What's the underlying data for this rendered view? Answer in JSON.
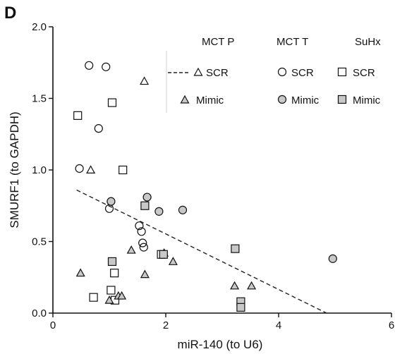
{
  "panel_label": "D",
  "chart_data": {
    "type": "scatter",
    "xlabel": "miR-140 (to U6)",
    "ylabel": "SMURF1 (to GAPDH)",
    "xlim": [
      0,
      6
    ],
    "ylim": [
      0,
      2.0
    ],
    "x_ticks": [
      {
        "value": 0,
        "label": "0"
      },
      {
        "value": 2,
        "label": "2"
      },
      {
        "value": 4,
        "label": "4"
      },
      {
        "value": 6,
        "label": "6"
      }
    ],
    "y_ticks": [
      {
        "value": 0,
        "label": "0.0"
      },
      {
        "value": 0.5,
        "label": "0.5"
      },
      {
        "value": 1.0,
        "label": "1.0"
      },
      {
        "value": 1.5,
        "label": "1.5"
      },
      {
        "value": 2.0,
        "label": "2.0"
      }
    ],
    "grid": false,
    "legend": {
      "position": "top-right",
      "column_headers": [
        "MCT P",
        "MCT T",
        "SuHx"
      ],
      "row_labels": [
        "SCR",
        "Mimic"
      ]
    },
    "trend_line": {
      "style": "dashed",
      "x": [
        0.42,
        4.85
      ],
      "y": [
        0.86,
        0.0
      ]
    },
    "series": [
      {
        "model": "MCT P",
        "group": "SCR",
        "marker": "triangle",
        "fill": "none",
        "points": [
          [
            0.67,
            1.0
          ],
          [
            1.62,
            1.62
          ]
        ]
      },
      {
        "model": "MCT T",
        "group": "SCR",
        "marker": "circle",
        "fill": "none",
        "points": [
          [
            0.64,
            1.73
          ],
          [
            0.94,
            1.72
          ],
          [
            0.81,
            1.29
          ],
          [
            0.47,
            1.01
          ],
          [
            1.0,
            0.73
          ],
          [
            1.53,
            0.61
          ],
          [
            1.57,
            0.57
          ],
          [
            1.59,
            0.49
          ],
          [
            1.61,
            0.46
          ]
        ]
      },
      {
        "model": "SuHx",
        "group": "SCR",
        "marker": "square",
        "fill": "none",
        "points": [
          [
            0.44,
            1.38
          ],
          [
            1.05,
            1.47
          ],
          [
            1.24,
            1.0
          ],
          [
            1.09,
            0.28
          ],
          [
            1.03,
            0.16
          ],
          [
            0.72,
            0.11
          ],
          [
            1.1,
            0.09
          ],
          [
            1.92,
            0.41
          ]
        ]
      },
      {
        "model": "MCT P",
        "group": "Mimic",
        "marker": "triangle",
        "fill": "#c8c8c8",
        "points": [
          [
            0.49,
            0.28
          ],
          [
            1.39,
            0.44
          ],
          [
            1.63,
            0.27
          ],
          [
            1.97,
            0.42
          ],
          [
            2.13,
            0.36
          ],
          [
            1.0,
            0.09
          ],
          [
            1.16,
            0.12
          ],
          [
            1.22,
            0.12
          ],
          [
            3.22,
            0.19
          ],
          [
            3.52,
            0.19
          ]
        ]
      },
      {
        "model": "MCT T",
        "group": "Mimic",
        "marker": "circle",
        "fill": "#c8c8c8",
        "points": [
          [
            1.03,
            0.78
          ],
          [
            1.67,
            0.81
          ],
          [
            1.88,
            0.71
          ],
          [
            2.3,
            0.72
          ],
          [
            4.96,
            0.38
          ]
        ]
      },
      {
        "model": "SuHx",
        "group": "Mimic",
        "marker": "square",
        "fill": "#c8c8c8",
        "points": [
          [
            1.63,
            0.75
          ],
          [
            1.05,
            0.36
          ],
          [
            1.96,
            0.41
          ],
          [
            3.23,
            0.45
          ],
          [
            3.33,
            0.08
          ],
          [
            3.33,
            0.04
          ]
        ]
      }
    ]
  }
}
